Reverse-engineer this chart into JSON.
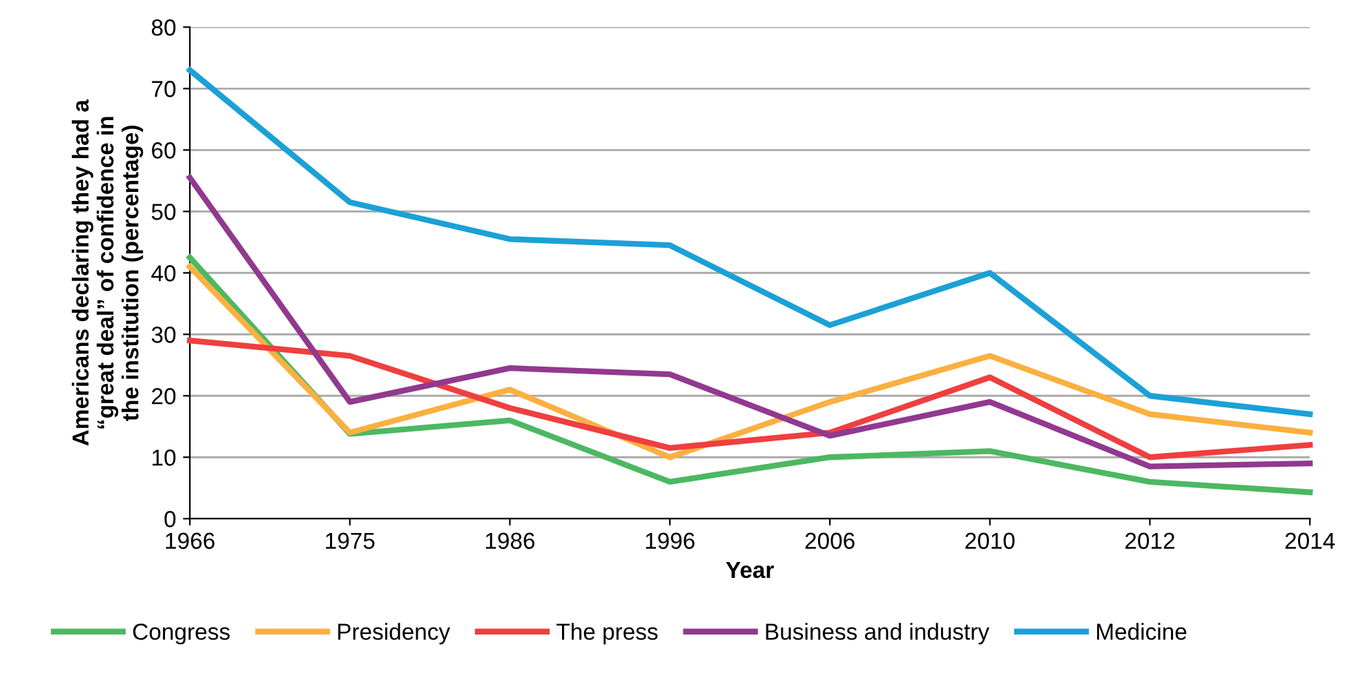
{
  "chart_data": {
    "type": "line",
    "xlabel": "Year",
    "ylabel": "Americans declaring they had a\n“great deal” of confidence in\nthe institution (percentage)",
    "categories": [
      "1966",
      "1975",
      "1986",
      "1996",
      "2006",
      "2010",
      "2012",
      "2014"
    ],
    "series": [
      {
        "name": "Congress",
        "color": "#4cb862",
        "values": [
          42.5,
          13.8,
          16,
          6,
          10,
          11,
          6,
          4.3
        ]
      },
      {
        "name": "Presidency",
        "color": "#fbb040",
        "values": [
          41,
          14,
          21,
          10,
          19,
          26.5,
          17,
          14
        ]
      },
      {
        "name": "The press",
        "color": "#ef3f3f",
        "values": [
          29,
          26.5,
          18,
          11.5,
          14,
          23,
          10,
          12
        ]
      },
      {
        "name": "Business and industry",
        "color": "#91398f",
        "values": [
          55.5,
          19,
          24.5,
          23.5,
          13.5,
          19,
          8.5,
          9
        ]
      },
      {
        "name": "Medicine",
        "color": "#1ba1d6",
        "values": [
          73,
          51.5,
          45.5,
          44.5,
          31.5,
          40,
          20,
          17
        ]
      }
    ],
    "ylim": [
      0,
      80
    ],
    "yticks": [
      0,
      10,
      20,
      30,
      40,
      50,
      60,
      70,
      80
    ],
    "grid": "y",
    "legend": "bottom",
    "marker": "none",
    "line_style": "solid"
  }
}
